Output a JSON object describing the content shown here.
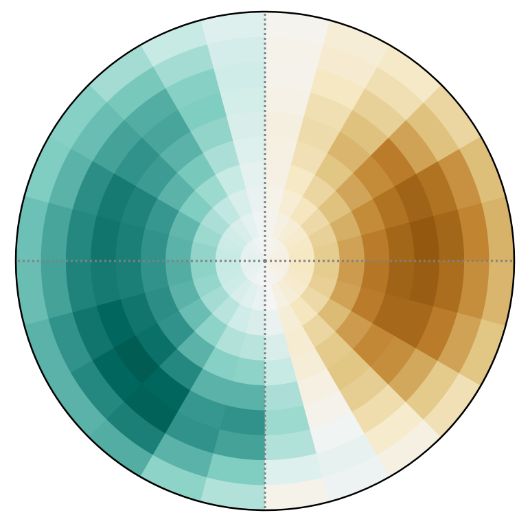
{
  "chart_data": {
    "type": "polar_heatmap",
    "colormap": "BrBG",
    "vlim": [
      -1,
      1
    ],
    "theta_edges": [
      0,
      15,
      30,
      45,
      60,
      75,
      90,
      105,
      120,
      135,
      150,
      165,
      180,
      195,
      210,
      225,
      240,
      255,
      270,
      285,
      300,
      315,
      330,
      345,
      360
    ],
    "r_edges": [
      0,
      0.1,
      0.2,
      0.3,
      0.4,
      0.5,
      0.6,
      0.7,
      0.8,
      0.9,
      1
    ],
    "thetaticks": [
      0,
      90,
      180,
      270
    ],
    "grid": true,
    "values": [
      [
        -0.08,
        -0.2,
        -0.35,
        -0.5,
        -0.62,
        -0.71,
        -0.77,
        -0.71,
        -0.59,
        -0.45
      ],
      [
        -0.07,
        -0.18,
        -0.32,
        -0.46,
        -0.57,
        -0.66,
        -0.72,
        -0.66,
        -0.55,
        -0.41
      ],
      [
        -0.06,
        -0.16,
        -0.28,
        -0.4,
        -0.49,
        -0.57,
        -0.62,
        -0.5,
        -0.4,
        -0.3
      ],
      [
        -0.05,
        -0.12,
        -0.21,
        -0.3,
        -0.38,
        -0.44,
        -0.4,
        -0.32,
        -0.25,
        -0.18
      ],
      [
        -0.03,
        -0.08,
        -0.13,
        -0.19,
        -0.24,
        -0.27,
        -0.25,
        -0.2,
        -0.15,
        -0.12
      ],
      [
        -0.01,
        -0.03,
        -0.05,
        -0.07,
        -0.08,
        -0.09,
        -0.06,
        -0.04,
        -0.05,
        -0.03
      ],
      [
        0.01,
        0.03,
        0.05,
        0.07,
        0.1,
        0.12,
        0.15,
        0.16,
        0.14,
        0.1
      ],
      [
        0.03,
        0.08,
        0.13,
        0.2,
        0.28,
        0.35,
        0.4,
        0.38,
        0.3,
        0.2
      ],
      [
        0.05,
        0.12,
        0.22,
        0.32,
        0.42,
        0.5,
        0.55,
        0.52,
        0.42,
        0.3
      ],
      [
        0.06,
        0.16,
        0.28,
        0.4,
        0.5,
        0.58,
        0.62,
        0.56,
        0.46,
        0.38
      ],
      [
        0.07,
        0.18,
        0.32,
        0.48,
        0.6,
        0.68,
        0.72,
        0.64,
        0.5,
        0.4
      ],
      [
        0.08,
        0.2,
        0.35,
        0.5,
        0.62,
        0.7,
        0.74,
        0.66,
        0.55,
        0.45
      ],
      [
        0.08,
        0.2,
        0.36,
        0.52,
        0.62,
        0.7,
        0.72,
        0.68,
        0.56,
        0.46
      ],
      [
        0.07,
        0.19,
        0.34,
        0.5,
        0.64,
        0.74,
        0.8,
        0.74,
        0.62,
        0.5
      ],
      [
        0.06,
        0.17,
        0.3,
        0.46,
        0.62,
        0.76,
        0.85,
        0.8,
        0.66,
        0.5
      ],
      [
        0.05,
        0.13,
        0.24,
        0.36,
        0.5,
        0.66,
        0.8,
        0.82,
        0.7,
        0.52
      ],
      [
        0.03,
        0.09,
        0.16,
        0.26,
        0.38,
        0.5,
        0.6,
        0.62,
        0.5,
        0.36
      ],
      [
        0.01,
        0.05,
        0.12,
        0.24,
        0.36,
        0.5,
        0.62,
        0.56,
        0.4,
        0.26
      ],
      [
        -0.01,
        0.0,
        0.05,
        0.12,
        0.2,
        0.28,
        0.32,
        0.26,
        0.1,
        -0.05
      ],
      [
        -0.03,
        -0.08,
        -0.12,
        -0.14,
        -0.12,
        -0.08,
        -0.04,
        0.02,
        0.06,
        0.04
      ],
      [
        -0.05,
        -0.12,
        -0.21,
        -0.3,
        -0.36,
        -0.38,
        -0.34,
        -0.26,
        -0.16,
        -0.08
      ],
      [
        -0.06,
        -0.16,
        -0.28,
        -0.42,
        -0.52,
        -0.58,
        -0.56,
        -0.48,
        -0.36,
        -0.24
      ],
      [
        -0.07,
        -0.18,
        -0.33,
        -0.5,
        -0.62,
        -0.7,
        -0.7,
        -0.62,
        -0.5,
        -0.38
      ],
      [
        -0.08,
        -0.2,
        -0.35,
        -0.52,
        -0.64,
        -0.72,
        -0.75,
        -0.68,
        -0.56,
        -0.44
      ]
    ]
  }
}
